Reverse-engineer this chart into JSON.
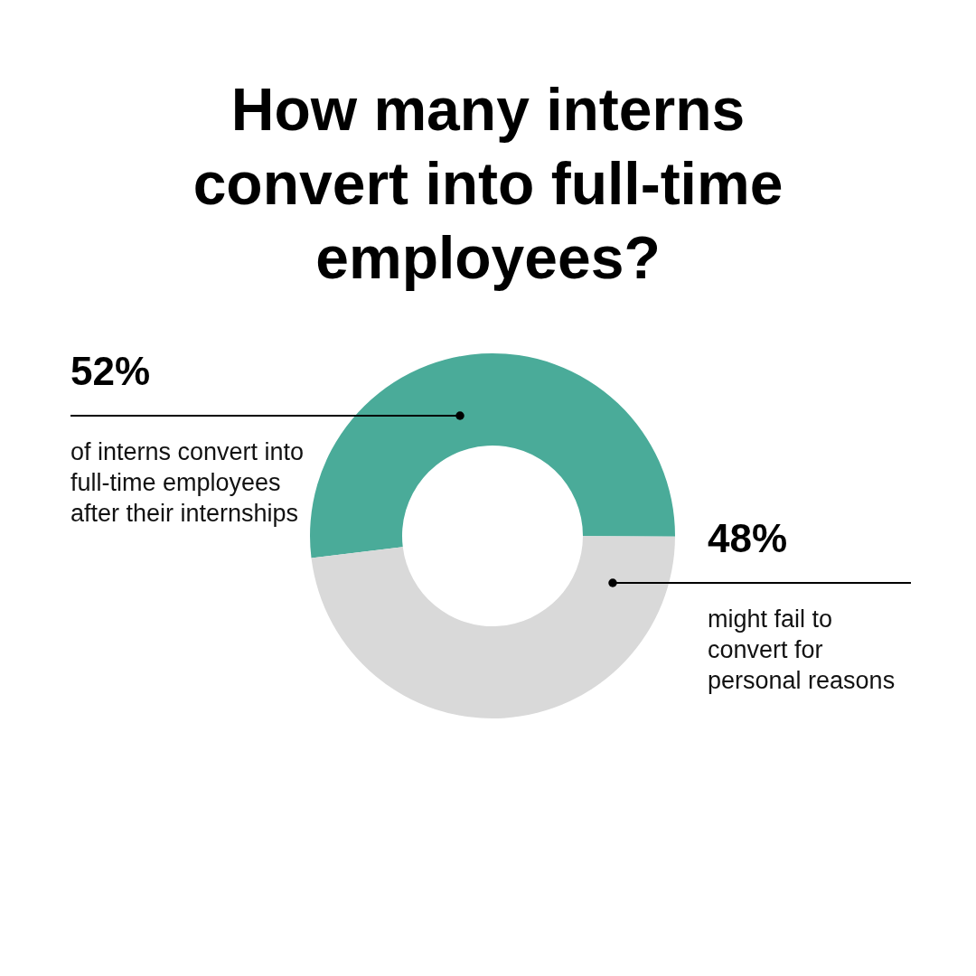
{
  "chart_data": {
    "type": "donut",
    "title": "How many interns convert into full-time employees?",
    "categories": [
      "of interns convert into full-time employees after their internships",
      "might fail to convert for personal reasons"
    ],
    "values": [
      52,
      48
    ],
    "value_labels": [
      "52%",
      "48%"
    ],
    "colors": [
      "#4aab99",
      "#d9d9d9"
    ]
  }
}
